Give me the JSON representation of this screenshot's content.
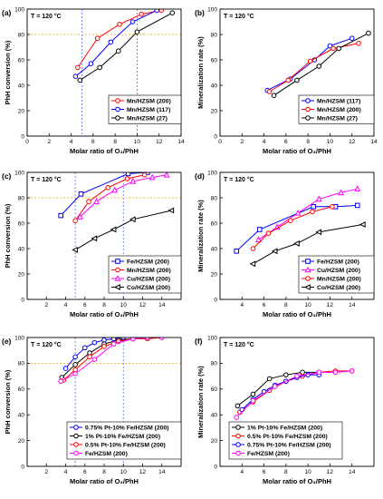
{
  "chart_data": [
    {
      "type": "line",
      "panel_label": "(a)",
      "annotation": "T = 120 °C",
      "xlabel": "Molar ratio of O₃/PhH",
      "ylabel": "PhH conversion (%)",
      "xlim": [
        0,
        14
      ],
      "ylim": [
        0,
        100
      ],
      "xticks": [
        0,
        2,
        4,
        6,
        8,
        10,
        12,
        14
      ],
      "yticks": [
        0,
        20,
        40,
        60,
        80,
        100
      ],
      "legend_position": "bottom-right",
      "reference_lines": {
        "y": [
          80
        ],
        "x": [
          5,
          10
        ]
      },
      "series": [
        {
          "name": "Mn/HZSM (200)",
          "color": "#ff0000",
          "marker": "circle",
          "x": [
            4.6,
            6.4,
            8.4,
            10.4,
            12.2
          ],
          "y": [
            54,
            77,
            88,
            96,
            99
          ]
        },
        {
          "name": "Mn/HZSM (117)",
          "color": "#0000ff",
          "marker": "circle",
          "x": [
            4.4,
            5.8,
            7.6,
            9.6,
            11.8
          ],
          "y": [
            47,
            57,
            74,
            90,
            99
          ]
        },
        {
          "name": "Mn/HZSM (27)",
          "color": "#000000",
          "marker": "circle",
          "x": [
            4.8,
            6.6,
            8.3,
            10.0,
            13.2
          ],
          "y": [
            44,
            54,
            67,
            82,
            97
          ]
        }
      ]
    },
    {
      "type": "line",
      "panel_label": "(b)",
      "annotation": "T = 120 °C",
      "xlabel": "Molar ratio of O₃/PhH",
      "ylabel": "Mineralization rate (%)",
      "xlim": [
        0,
        14
      ],
      "ylim": [
        0,
        100
      ],
      "xticks": [
        0,
        2,
        4,
        6,
        8,
        10,
        12,
        14
      ],
      "yticks": [
        0,
        20,
        40,
        60,
        80,
        100
      ],
      "legend_position": "bottom-right",
      "series": [
        {
          "name": "Mn/HZSM (117)",
          "color": "#0000ff",
          "marker": "circle",
          "x": [
            4.3,
            6.4,
            8.6,
            10.0,
            12.0
          ],
          "y": [
            36,
            45,
            60,
            71,
            77
          ]
        },
        {
          "name": "Mn/HZSM (200)",
          "color": "#ff0000",
          "marker": "circle",
          "x": [
            4.5,
            6.2,
            8.2,
            10.3,
            12.6
          ],
          "y": [
            35,
            44,
            59,
            69,
            73
          ]
        },
        {
          "name": "Mn/HZSM (27)",
          "color": "#000000",
          "marker": "circle",
          "x": [
            4.9,
            7.0,
            9.0,
            10.8,
            13.5
          ],
          "y": [
            32,
            44,
            55,
            69,
            81
          ]
        }
      ]
    },
    {
      "type": "line",
      "panel_label": "(c)",
      "annotation": "T = 120 °C",
      "xlabel": "Molar ratio of O₃/PhH",
      "ylabel": "PhH conversion (%)",
      "xlim": [
        0,
        16
      ],
      "ylim": [
        0,
        100
      ],
      "xticks": [
        2,
        4,
        6,
        8,
        10,
        12,
        14
      ],
      "yticks": [
        0,
        20,
        40,
        60,
        80,
        100
      ],
      "legend_position": "bottom-right",
      "reference_lines": {
        "y": [
          80
        ],
        "x": [
          5,
          10
        ]
      },
      "series": [
        {
          "name": "Fe/HZSM (200)",
          "color": "#0000ff",
          "marker": "square",
          "x": [
            3.5,
            5.6,
            10.5,
            12.5
          ],
          "y": [
            66,
            83,
            99,
            100
          ]
        },
        {
          "name": "Mn/HZSM (200)",
          "color": "#ff0000",
          "marker": "circle",
          "x": [
            5.0,
            6.4,
            8.4,
            10.4,
            12.2
          ],
          "y": [
            62,
            77,
            88,
            95,
            98
          ]
        },
        {
          "name": "Cu/HZSM (200)",
          "color": "#ff00ff",
          "marker": "triangle",
          "x": [
            5.5,
            7.2,
            9.1,
            11.0,
            13.0,
            14.5
          ],
          "y": [
            65,
            77,
            86,
            93,
            96,
            98
          ]
        },
        {
          "name": "Co/HZSM (200)",
          "color": "#000000",
          "marker": "triangle-left",
          "x": [
            5.0,
            7.0,
            9.0,
            11.0,
            15.0
          ],
          "y": [
            39,
            48,
            55,
            63,
            70
          ]
        }
      ]
    },
    {
      "type": "line",
      "panel_label": "(d)",
      "annotation": "T = 120 °C",
      "xlabel": "Molar ratio of O₃/PhH",
      "ylabel": "Mineralization rate (%)",
      "xlim": [
        2,
        16
      ],
      "ylim": [
        0,
        100
      ],
      "xticks": [
        4,
        6,
        8,
        10,
        12,
        14
      ],
      "yticks": [
        0,
        20,
        40,
        60,
        80,
        100
      ],
      "legend_position": "bottom-right",
      "series": [
        {
          "name": "Fe/HZSM (200)",
          "color": "#0000ff",
          "marker": "square",
          "x": [
            3.5,
            5.6,
            10.5,
            12.5,
            14.5
          ],
          "y": [
            38,
            55,
            73,
            73,
            74
          ]
        },
        {
          "name": "Cu/HZSM (200)",
          "color": "#ff00ff",
          "marker": "triangle",
          "x": [
            5.5,
            7.2,
            9.1,
            11.0,
            13.0,
            14.5
          ],
          "y": [
            47,
            57,
            68,
            79,
            84,
            87
          ]
        },
        {
          "name": "Mn/HZSM (200)",
          "color": "#ff0000",
          "marker": "circle",
          "x": [
            5.0,
            6.4,
            8.4,
            10.4,
            12.2
          ],
          "y": [
            40,
            52,
            62,
            69,
            73
          ]
        },
        {
          "name": "Co/HZSM (200)",
          "color": "#000000",
          "marker": "triangle-left",
          "x": [
            5.0,
            7.0,
            9.0,
            11.0,
            15.0
          ],
          "y": [
            28,
            38,
            44,
            53,
            59
          ]
        }
      ]
    },
    {
      "type": "line",
      "panel_label": "(e)",
      "annotation": "T = 120 °C",
      "xlabel": "Molar ratio of O₃/PhH",
      "ylabel": "PhH conversion (%)",
      "xlim": [
        0,
        16
      ],
      "ylim": [
        0,
        100
      ],
      "xticks": [
        2,
        4,
        6,
        8,
        10,
        12,
        14
      ],
      "yticks": [
        0,
        20,
        40,
        60,
        80,
        100
      ],
      "legend_position": "bottom-right",
      "reference_lines": {
        "y": [
          80
        ],
        "x": [
          5,
          10
        ]
      },
      "series": [
        {
          "name": "0.75% Pt-10% Fe/HZSM (200)",
          "color": "#0000ff",
          "marker": "circle",
          "x": [
            4.0,
            5.0,
            6.0,
            7.0,
            8.0,
            9.0,
            10.0
          ],
          "y": [
            76,
            85,
            92,
            96,
            98,
            99,
            100
          ]
        },
        {
          "name": "1% Pt-10% Fe/HZSM (200)",
          "color": "#000000",
          "marker": "circle",
          "x": [
            3.6,
            5.0,
            6.5,
            8.0,
            9.5,
            11.0
          ],
          "y": [
            69,
            79,
            88,
            95,
            98,
            99
          ]
        },
        {
          "name": "0.5% Pt-10% Fe/HZSM (200)",
          "color": "#ff0000",
          "marker": "circle",
          "x": [
            3.8,
            5.0,
            6.5,
            8.0,
            9.5,
            11.0,
            12.5,
            14.0
          ],
          "y": [
            67,
            75,
            85,
            93,
            97,
            99,
            99,
            100
          ]
        },
        {
          "name": "Fe/HZSM (200)",
          "color": "#ff00ff",
          "marker": "circle",
          "x": [
            3.5,
            5.0,
            7.0,
            9.0,
            11.0,
            12.5,
            14.0
          ],
          "y": [
            66,
            72,
            83,
            95,
            99,
            100,
            100
          ]
        }
      ]
    },
    {
      "type": "line",
      "panel_label": "(f)",
      "annotation": "T = 120 °C",
      "xlabel": "Molar ratio of O₃/PhH",
      "ylabel": "Mineralization rate (%)",
      "xlim": [
        2,
        16
      ],
      "ylim": [
        0,
        100
      ],
      "xticks": [
        4,
        6,
        8,
        10,
        12,
        14
      ],
      "yticks": [
        0,
        20,
        40,
        60,
        80,
        100
      ],
      "legend_position": "bottom-right",
      "series": [
        {
          "name": "1% Pt-10% Fe/HZSM (200)",
          "color": "#000000",
          "marker": "circle",
          "x": [
            3.6,
            5.0,
            6.5,
            8.0,
            9.5,
            11.0
          ],
          "y": [
            47,
            56,
            68,
            71,
            73,
            73
          ]
        },
        {
          "name": "0.5% Pt-10% Fe/HZSM (200)",
          "color": "#ff0000",
          "marker": "circle",
          "x": [
            3.8,
            5.0,
            6.5,
            8.0,
            9.5,
            11.0,
            12.5,
            14.0
          ],
          "y": [
            42,
            50,
            59,
            66,
            70,
            73,
            74,
            74
          ]
        },
        {
          "name": "0.75% Pt-10% Fe/HZSM (200)",
          "color": "#0000ff",
          "marker": "circle",
          "x": [
            4.0,
            5.0,
            6.0,
            7.0,
            8.0,
            9.0,
            10.0,
            11.0
          ],
          "y": [
            44,
            52,
            58,
            63,
            66,
            69,
            71,
            71
          ]
        },
        {
          "name": "Fe/HZSM (200)",
          "color": "#ff00ff",
          "marker": "circle",
          "x": [
            3.5,
            5.0,
            7.0,
            9.0,
            11.0,
            12.5,
            14.0
          ],
          "y": [
            38,
            51,
            62,
            70,
            73,
            73,
            74
          ]
        }
      ]
    }
  ]
}
